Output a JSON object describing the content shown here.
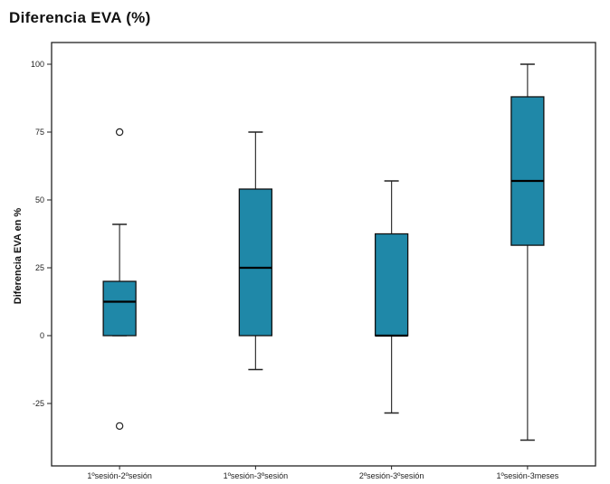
{
  "chart_data": {
    "type": "boxplot",
    "title": "Diferencia EVA (%)",
    "xlabel": "",
    "ylabel": "Diferencia EVA en %",
    "ylim": [
      -48,
      108
    ],
    "yticks": [
      -25,
      0,
      25,
      50,
      75,
      100
    ],
    "grid": false,
    "box_color": "#1f88a8",
    "categories": [
      "1ºsesión-2ºsesión",
      "1ºsesión-3ºsesión",
      "2ºsesión-3ºsesión",
      "1ºsesión-3meses"
    ],
    "boxes": [
      {
        "min": 0,
        "q1": 0,
        "median": 12.5,
        "q3": 20,
        "max": 41,
        "outliers": [
          75,
          -33.3
        ]
      },
      {
        "min": -12.5,
        "q1": 0,
        "median": 25,
        "q3": 54,
        "max": 75,
        "outliers": []
      },
      {
        "min": -28.5,
        "q1": 0,
        "median": 0,
        "q3": 37.5,
        "max": 57,
        "outliers": []
      },
      {
        "min": -38.5,
        "q1": 33.3,
        "median": 57,
        "q3": 88,
        "max": 100,
        "outliers": []
      }
    ]
  }
}
